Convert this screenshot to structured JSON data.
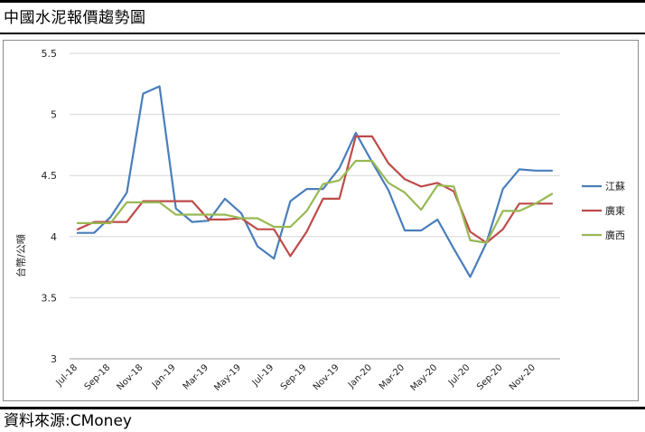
{
  "page": {
    "title": "中國水泥報價趨勢圖",
    "source": "資料來源:CMoney"
  },
  "chart_data": {
    "type": "line",
    "title": "",
    "xlabel": "",
    "ylabel": "台幣/公噸",
    "ylim": [
      3,
      5.5
    ],
    "yticks": [
      3,
      3.5,
      4,
      4.5,
      5,
      5.5
    ],
    "grid": true,
    "legend_position": "right",
    "x": [
      "Jul-18",
      "Aug-18",
      "Sep-18",
      "Oct-18",
      "Nov-18",
      "Dec-18",
      "Jan-19",
      "Feb-19",
      "Mar-19",
      "Apr-19",
      "May-19",
      "Jun-19",
      "Jul-19",
      "Aug-19",
      "Sep-19",
      "Oct-19",
      "Nov-19",
      "Dec-19",
      "Jan-20",
      "Feb-20",
      "Mar-20",
      "Apr-20",
      "May-20",
      "Jun-20",
      "Jul-20",
      "Aug-20",
      "Sep-20",
      "Oct-20",
      "Nov-20",
      "Dec-20"
    ],
    "xtick_labels": [
      "Jul-18",
      "Sep-18",
      "Nov-18",
      "Jan-19",
      "Mar-19",
      "May-19",
      "Jul-19",
      "Sep-19",
      "Nov-19",
      "Jan-20",
      "Mar-20",
      "May-20",
      "Jul-20",
      "Sep-20",
      "Nov-20"
    ],
    "series": [
      {
        "name": "江蘇",
        "color": "#4a7ebb",
        "values": [
          4.03,
          4.03,
          4.16,
          4.36,
          5.17,
          5.23,
          4.23,
          4.12,
          4.13,
          4.31,
          4.19,
          3.92,
          3.82,
          4.29,
          4.39,
          4.39,
          4.56,
          4.85,
          4.61,
          4.38,
          4.05,
          4.05,
          4.14,
          3.9,
          3.67,
          3.95,
          4.39,
          4.55,
          4.54,
          4.54
        ]
      },
      {
        "name": "廣東",
        "color": "#be4b48",
        "values": [
          4.06,
          4.12,
          4.12,
          4.12,
          4.29,
          4.29,
          4.29,
          4.29,
          4.14,
          4.14,
          4.15,
          4.06,
          4.06,
          3.84,
          4.04,
          4.31,
          4.31,
          4.82,
          4.82,
          4.6,
          4.47,
          4.41,
          4.44,
          4.37,
          4.04,
          3.95,
          4.06,
          4.27,
          4.27,
          4.27
        ]
      },
      {
        "name": "廣西",
        "color": "#98b954",
        "values": [
          4.11,
          4.11,
          4.11,
          4.28,
          4.28,
          4.28,
          4.18,
          4.18,
          4.18,
          4.18,
          4.15,
          4.15,
          4.08,
          4.08,
          4.21,
          4.43,
          4.46,
          4.62,
          4.62,
          4.44,
          4.36,
          4.22,
          4.42,
          4.41,
          3.97,
          3.95,
          4.21,
          4.21,
          4.27,
          4.35
        ]
      }
    ]
  }
}
